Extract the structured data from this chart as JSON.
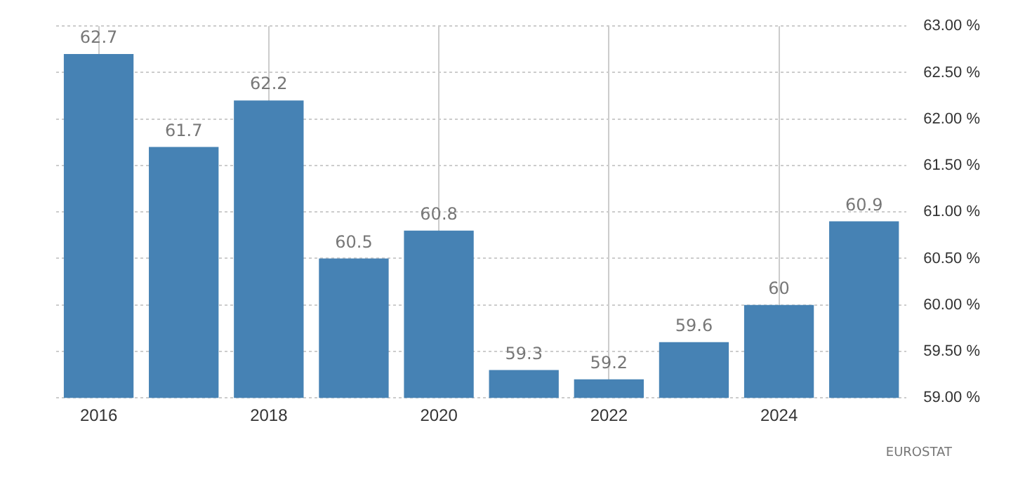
{
  "chart_data": {
    "type": "bar",
    "categories": [
      "2016",
      null,
      "2018",
      null,
      "2020",
      null,
      "2022",
      null,
      "2024",
      null
    ],
    "values": [
      62.7,
      61.7,
      62.2,
      60.5,
      60.8,
      59.3,
      59.2,
      59.6,
      60,
      60.9
    ],
    "color": "#4682b4",
    "ylim": [
      59,
      63
    ],
    "yticks": [
      {
        "value": 59,
        "label": "59.00 %"
      },
      {
        "value": 59.5,
        "label": "59.50 %"
      },
      {
        "value": 60,
        "label": "60.00 %"
      },
      {
        "value": 60.5,
        "label": "60.50 %"
      },
      {
        "value": 61,
        "label": "61.00 %"
      },
      {
        "value": 61.5,
        "label": "61.50 %"
      },
      {
        "value": 62,
        "label": "62.00 %"
      },
      {
        "value": 62.5,
        "label": "62.50 %"
      },
      {
        "value": 63,
        "label": "63.00 %"
      }
    ],
    "grid": true,
    "data_labels": true,
    "annotations": [
      "EUROSTAT"
    ]
  }
}
